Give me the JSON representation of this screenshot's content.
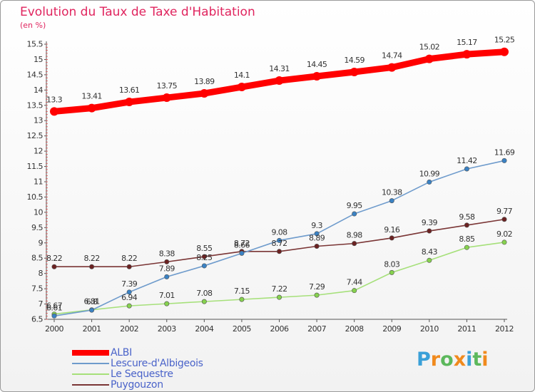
{
  "title": "Evolution du Taux de Taxe d'Habitation",
  "subtitle": "(en %)",
  "logo": {
    "letters": [
      "P",
      "r",
      "o",
      "x",
      "i",
      "t",
      "i"
    ],
    "colors": [
      "#3aa0d8",
      "#f08a1d",
      "#5cb85c",
      "#f08a1d",
      "#3aa0d8",
      "#5cb85c",
      "#f08a1d"
    ]
  },
  "chart_data": {
    "type": "line",
    "title": "Evolution du Taux de Taxe d'Habitation",
    "ylabel": "(en %)",
    "xlabel": "",
    "x": [
      "2000",
      "2001",
      "2002",
      "2003",
      "2004",
      "2005",
      "2006",
      "2007",
      "2008",
      "2009",
      "2010",
      "2011",
      "2012"
    ],
    "ylim": [
      6.5,
      15.5
    ],
    "yticks": [
      "6.5",
      "7",
      "7.5",
      "8",
      "8.5",
      "9",
      "9.5",
      "10",
      "10.5",
      "11",
      "11.5",
      "12",
      "12.5",
      "13",
      "13.5",
      "14",
      "14.5",
      "15",
      "15.5"
    ],
    "grid": false,
    "legend": "bottom-left",
    "series": [
      {
        "name": "ALBI",
        "color": "#ff0000",
        "values": [
          13.3,
          13.41,
          13.61,
          13.75,
          13.89,
          14.1,
          14.31,
          14.45,
          14.59,
          14.74,
          15.02,
          15.17,
          15.25
        ],
        "labels": [
          "13.3",
          "13.41",
          "13.61",
          "13.75",
          "13.89",
          "14.1",
          "14.31",
          "14.45",
          "14.59",
          "14.74",
          "15.02",
          "15.17",
          "15.25"
        ]
      },
      {
        "name": "Lescure-d'Albigeois",
        "color": "#6e9bcc",
        "marker": "#3a82c4",
        "values": [
          6.61,
          6.8,
          7.39,
          7.89,
          8.25,
          8.66,
          9.08,
          9.3,
          9.95,
          10.38,
          10.99,
          11.42,
          11.69
        ],
        "labels": [
          "6.61",
          "6.8",
          "7.39",
          "7.89",
          "8.25",
          "8.66",
          "9.08",
          "9.3",
          "9.95",
          "10.38",
          "10.99",
          "11.42",
          "11.69"
        ]
      },
      {
        "name": "Le Sequestre",
        "color": "#a6e07a",
        "marker": "#86d24e",
        "values": [
          6.67,
          6.81,
          6.94,
          7.01,
          7.08,
          7.15,
          7.22,
          7.29,
          7.44,
          8.03,
          8.43,
          8.85,
          9.02
        ],
        "labels": [
          "6.67",
          "6.81",
          "6.94",
          "7.01",
          "7.08",
          "7.15",
          "7.22",
          "7.29",
          "7.44",
          "8.03",
          "8.43",
          "8.85",
          "9.02"
        ]
      },
      {
        "name": "Puygouzon",
        "color": "#7a3535",
        "marker": "#6b2222",
        "values": [
          8.22,
          8.22,
          8.22,
          8.38,
          8.55,
          8.72,
          8.72,
          8.89,
          8.98,
          9.16,
          9.39,
          9.58,
          9.77
        ],
        "labels": [
          "8.22",
          "8.22",
          "8.22",
          "8.38",
          "8.55",
          "8.72",
          "8.72",
          "8.89",
          "8.98",
          "9.16",
          "9.39",
          "9.58",
          "9.77"
        ]
      }
    ]
  }
}
